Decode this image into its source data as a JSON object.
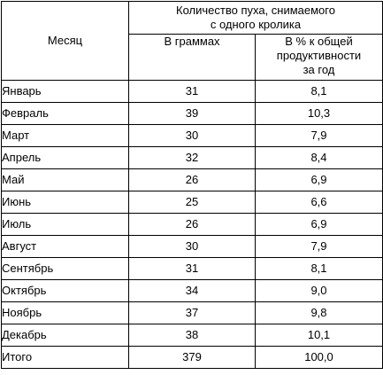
{
  "header": {
    "month_label": "Месяц",
    "group_label_line1": "Количество пуха, снимаемого",
    "group_label_line2": "с одного кролика",
    "grams_label": "В граммах",
    "percent_label_line1": "В % к общей",
    "percent_label_line2": "продуктивности",
    "percent_label_line3": "за год"
  },
  "rows": [
    {
      "month": "Январь",
      "grams": "31",
      "percent": "8,1"
    },
    {
      "month": "Февраль",
      "grams": "39",
      "percent": "10,3"
    },
    {
      "month": "Март",
      "grams": "30",
      "percent": "7,9"
    },
    {
      "month": "Апрель",
      "grams": "32",
      "percent": "8,4"
    },
    {
      "month": "Май",
      "grams": "26",
      "percent": "6,9"
    },
    {
      "month": "Июнь",
      "grams": "25",
      "percent": "6,6"
    },
    {
      "month": "Июль",
      "grams": "26",
      "percent": "6,9"
    },
    {
      "month": "Август",
      "grams": "30",
      "percent": "7,9"
    },
    {
      "month": "Сентябрь",
      "grams": "31",
      "percent": "8,1"
    },
    {
      "month": "Октябрь",
      "grams": "34",
      "percent": "9,0"
    },
    {
      "month": "Ноябрь",
      "grams": "37",
      "percent": "9,8"
    },
    {
      "month": "Декабрь",
      "grams": "38",
      "percent": "10,1"
    }
  ],
  "total": {
    "month": "Итого",
    "grams": "379",
    "percent": "100,0"
  }
}
